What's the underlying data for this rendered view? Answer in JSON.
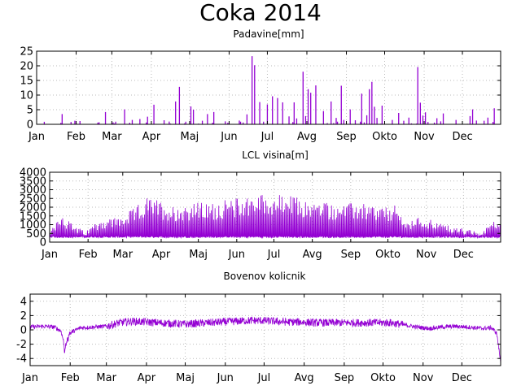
{
  "title": "Coka 2014",
  "months": [
    "Jan",
    "Feb",
    "Mar",
    "Apr",
    "Maj",
    "Jun",
    "Jul",
    "Avg",
    "Sep",
    "Okto",
    "Nov",
    "Dec"
  ],
  "colors": {
    "series": "#9400d3",
    "grid": "#bbbbbb",
    "axis": "#000000"
  },
  "chart_data": [
    {
      "type": "bar",
      "title": "Padavine[mm]",
      "xlabel": "",
      "ylabel": "",
      "ylim": [
        0,
        25
      ],
      "yticks": [
        0,
        5,
        10,
        15,
        20,
        25
      ],
      "grid": true,
      "x_unit": "day-of-year",
      "xlim": [
        1,
        365
      ],
      "peaks": [
        [
          21,
          3.5
        ],
        [
          28,
          0.8
        ],
        [
          31,
          1.2
        ],
        [
          35,
          1.1
        ],
        [
          55,
          4.2
        ],
        [
          63,
          0.9
        ],
        [
          70,
          5.1
        ],
        [
          76,
          1.5
        ],
        [
          82,
          1.8
        ],
        [
          88,
          2.6
        ],
        [
          93,
          6.7
        ],
        [
          101,
          1.4
        ],
        [
          110,
          7.8
        ],
        [
          113,
          12.8
        ],
        [
          118,
          0.9
        ],
        [
          122,
          6.1
        ],
        [
          124,
          5.0
        ],
        [
          131,
          1.2
        ],
        [
          135,
          3.5
        ],
        [
          140,
          4.2
        ],
        [
          149,
          1.0
        ],
        [
          160,
          1.3
        ],
        [
          166,
          3.4
        ],
        [
          170,
          23.3
        ],
        [
          172,
          20.2
        ],
        [
          176,
          7.6
        ],
        [
          182,
          6.8
        ],
        [
          186,
          9.6
        ],
        [
          190,
          9.0
        ],
        [
          194,
          7.5
        ],
        [
          199,
          2.7
        ],
        [
          203,
          7.5
        ],
        [
          205,
          2.0
        ],
        [
          210,
          18.0
        ],
        [
          212,
          2.8
        ],
        [
          214,
          12.0
        ],
        [
          216,
          10.8
        ],
        [
          220,
          13.3
        ],
        [
          226,
          4.5
        ],
        [
          232,
          7.8
        ],
        [
          236,
          2.2
        ],
        [
          240,
          13.2
        ],
        [
          242,
          1.5
        ],
        [
          247,
          5.1
        ],
        [
          251,
          1.4
        ],
        [
          256,
          10.5
        ],
        [
          260,
          3.1
        ],
        [
          262,
          12.0
        ],
        [
          264,
          14.5
        ],
        [
          266,
          6.0
        ],
        [
          268,
          2.2
        ],
        [
          272,
          6.4
        ],
        [
          280,
          1.5
        ],
        [
          285,
          3.9
        ],
        [
          289,
          1.2
        ],
        [
          293,
          2.3
        ],
        [
          300,
          19.6
        ],
        [
          302,
          7.4
        ],
        [
          304,
          3.0
        ],
        [
          306,
          4.1
        ],
        [
          315,
          2.1
        ],
        [
          320,
          3.7
        ],
        [
          330,
          1.5
        ],
        [
          341,
          2.8
        ],
        [
          343,
          5.1
        ],
        [
          346,
          1.3
        ],
        [
          352,
          1.2
        ],
        [
          355,
          2.3
        ],
        [
          360,
          5.5
        ]
      ]
    },
    {
      "type": "line",
      "title": "LCL visina[m]",
      "xlabel": "",
      "ylabel": "",
      "ylim": [
        0,
        4000
      ],
      "yticks": [
        0,
        500,
        1000,
        1500,
        2000,
        2500,
        3000,
        3500,
        4000
      ],
      "grid": true,
      "x_unit": "day-of-year",
      "xlim": [
        1,
        365
      ],
      "envelope": [
        [
          1,
          700
        ],
        [
          10,
          1700
        ],
        [
          20,
          1000
        ],
        [
          30,
          600
        ],
        [
          40,
          1300
        ],
        [
          50,
          1400
        ],
        [
          60,
          1500
        ],
        [
          70,
          2000
        ],
        [
          80,
          2600
        ],
        [
          90,
          2400
        ],
        [
          100,
          2100
        ],
        [
          110,
          2200
        ],
        [
          120,
          2300
        ],
        [
          130,
          2200
        ],
        [
          140,
          2400
        ],
        [
          150,
          2500
        ],
        [
          160,
          2700
        ],
        [
          170,
          2800
        ],
        [
          180,
          2700
        ],
        [
          190,
          2750
        ],
        [
          200,
          2600
        ],
        [
          210,
          2300
        ],
        [
          220,
          2400
        ],
        [
          230,
          2250
        ],
        [
          240,
          2200
        ],
        [
          250,
          2300
        ],
        [
          260,
          2150
        ],
        [
          270,
          2000
        ],
        [
          280,
          2100
        ],
        [
          290,
          1100
        ],
        [
          300,
          1500
        ],
        [
          310,
          1300
        ],
        [
          320,
          1000
        ],
        [
          330,
          900
        ],
        [
          340,
          700
        ],
        [
          350,
          500
        ],
        [
          360,
          1500
        ],
        [
          365,
          1000
        ]
      ],
      "baseline": 250
    },
    {
      "type": "line",
      "title": "Bovenov kolicnik",
      "xlabel": "",
      "ylabel": "",
      "ylim": [
        -5,
        5
      ],
      "yticks": [
        -4,
        -2,
        0,
        2,
        4
      ],
      "grid": true,
      "x_unit": "day-of-year",
      "xlim": [
        1,
        365
      ],
      "trend": [
        [
          1,
          0.4
        ],
        [
          10,
          0.5
        ],
        [
          20,
          0.4
        ],
        [
          25,
          -0.2
        ],
        [
          28,
          -2.5
        ],
        [
          31,
          -0.5
        ],
        [
          40,
          0.3
        ],
        [
          50,
          0.4
        ],
        [
          60,
          0.5
        ],
        [
          70,
          1.0
        ],
        [
          80,
          1.2
        ],
        [
          90,
          1.1
        ],
        [
          100,
          1.0
        ],
        [
          110,
          0.9
        ],
        [
          120,
          0.8
        ],
        [
          130,
          0.9
        ],
        [
          140,
          1.0
        ],
        [
          150,
          1.1
        ],
        [
          160,
          1.2
        ],
        [
          170,
          1.3
        ],
        [
          180,
          1.3
        ],
        [
          190,
          1.2
        ],
        [
          200,
          1.1
        ],
        [
          210,
          1.1
        ],
        [
          220,
          1.0
        ],
        [
          230,
          1.0
        ],
        [
          240,
          1.0
        ],
        [
          250,
          1.0
        ],
        [
          260,
          1.0
        ],
        [
          270,
          1.0
        ],
        [
          280,
          1.0
        ],
        [
          290,
          0.7
        ],
        [
          300,
          0.4
        ],
        [
          310,
          0.2
        ],
        [
          320,
          0.4
        ],
        [
          330,
          0.5
        ],
        [
          340,
          0.4
        ],
        [
          350,
          0.2
        ],
        [
          358,
          0.3
        ],
        [
          362,
          -0.5
        ],
        [
          365,
          -4.5
        ]
      ]
    }
  ]
}
